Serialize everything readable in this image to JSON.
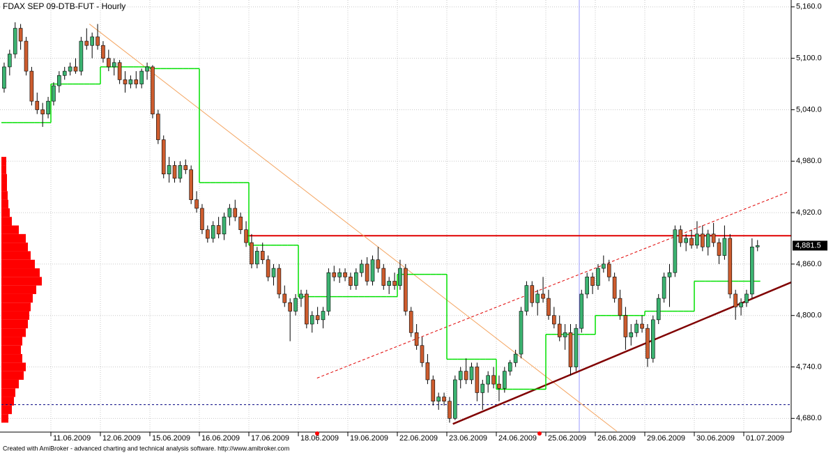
{
  "chart_data": {
    "type": "candlestick",
    "title": "FDAX SEP 09-DTB-FUT - Hourly",
    "footer": "Created with AmiBroker - advanced charting and technical analysis software. http://www.amibroker.com",
    "up_color": "#3cb371",
    "down_color": "#cd5c2e",
    "ylim": [
      4664,
      5168
    ],
    "yticks": [
      {
        "value": 4680,
        "label": "4,680.0"
      },
      {
        "value": 4740,
        "label": "4,740.0"
      },
      {
        "value": 4800,
        "label": "4,800.0"
      },
      {
        "value": 4860,
        "label": "4,860.0"
      },
      {
        "value": 4920,
        "label": "4,920.0"
      },
      {
        "value": 4980,
        "label": "4,980.0"
      },
      {
        "value": 5040,
        "label": "5,040.0"
      },
      {
        "value": 5100,
        "label": "5,100.0"
      },
      {
        "value": 5160,
        "label": "5,160.0"
      }
    ],
    "grid": true,
    "categories": [
      null,
      null,
      null,
      null,
      null,
      null,
      null,
      null,
      null,
      "11.06.2009",
      null,
      null,
      null,
      null,
      null,
      null,
      null,
      null,
      "12.06.2009",
      null,
      null,
      null,
      null,
      null,
      null,
      null,
      null,
      "15.06.2009",
      null,
      null,
      null,
      null,
      null,
      null,
      null,
      null,
      "16.06.2009",
      null,
      null,
      null,
      null,
      null,
      null,
      null,
      null,
      "17.06.2009",
      null,
      null,
      null,
      null,
      null,
      null,
      null,
      null,
      "18.06.2009",
      null,
      null,
      null,
      null,
      null,
      null,
      null,
      null,
      "19.06.2009",
      null,
      null,
      null,
      null,
      null,
      null,
      null,
      null,
      "22.06.2009",
      null,
      null,
      null,
      null,
      null,
      null,
      null,
      null,
      "23.06.2009",
      null,
      null,
      null,
      null,
      null,
      null,
      null,
      null,
      "24.06.2009",
      null,
      null,
      null,
      null,
      null,
      null,
      null,
      null,
      "25.06.2009",
      null,
      null,
      null,
      null,
      null,
      null,
      null,
      null,
      "26.06.2009",
      null,
      null,
      null,
      null,
      null,
      null,
      null,
      null,
      "29.06.2009",
      null,
      null,
      null,
      null,
      null,
      null,
      null,
      null,
      "30.06.2009",
      null,
      null,
      null,
      null,
      null,
      null,
      null,
      null,
      "01.07.2009",
      null,
      null
    ],
    "ohlc": [
      [
        5065,
        5095,
        5060,
        5090
      ],
      [
        5090,
        5110,
        5080,
        5105
      ],
      [
        5105,
        5142,
        5100,
        5135
      ],
      [
        5135,
        5140,
        5110,
        5120
      ],
      [
        5120,
        5125,
        5080,
        5085
      ],
      [
        5085,
        5090,
        5045,
        5050
      ],
      [
        5050,
        5060,
        5035,
        5040
      ],
      [
        5040,
        5048,
        5020,
        5035
      ],
      [
        5035,
        5055,
        5030,
        5050
      ],
      [
        5050,
        5072,
        5045,
        5068
      ],
      [
        5068,
        5085,
        5060,
        5080
      ],
      [
        5080,
        5090,
        5075,
        5085
      ],
      [
        5085,
        5095,
        5080,
        5090
      ],
      [
        5090,
        5100,
        5082,
        5085
      ],
      [
        5085,
        5125,
        5080,
        5120
      ],
      [
        5120,
        5135,
        5110,
        5115
      ],
      [
        5115,
        5130,
        5100,
        5125
      ],
      [
        5125,
        5140,
        5110,
        5115
      ],
      [
        5115,
        5120,
        5095,
        5100
      ],
      [
        5100,
        5110,
        5085,
        5090
      ],
      [
        5090,
        5100,
        5080,
        5095
      ],
      [
        5095,
        5098,
        5070,
        5075
      ],
      [
        5075,
        5085,
        5060,
        5070
      ],
      [
        5070,
        5080,
        5065,
        5075
      ],
      [
        5075,
        5085,
        5065,
        5070
      ],
      [
        5070,
        5088,
        5065,
        5085
      ],
      [
        5085,
        5095,
        5075,
        5090
      ],
      [
        5090,
        5092,
        5030,
        5035
      ],
      [
        5035,
        5040,
        5000,
        5005
      ],
      [
        5005,
        5010,
        4960,
        4965
      ],
      [
        4965,
        4985,
        4955,
        4975
      ],
      [
        4975,
        4980,
        4955,
        4960
      ],
      [
        4960,
        4980,
        4955,
        4975
      ],
      [
        4975,
        4982,
        4965,
        4970
      ],
      [
        4970,
        4975,
        4930,
        4935
      ],
      [
        4935,
        4945,
        4920,
        4925
      ],
      [
        4925,
        4930,
        4895,
        4900
      ],
      [
        4900,
        4905,
        4885,
        4890
      ],
      [
        4890,
        4910,
        4885,
        4905
      ],
      [
        4905,
        4915,
        4890,
        4895
      ],
      [
        4895,
        4920,
        4888,
        4915
      ],
      [
        4915,
        4930,
        4905,
        4925
      ],
      [
        4925,
        4935,
        4910,
        4915
      ],
      [
        4915,
        4920,
        4895,
        4900
      ],
      [
        4900,
        4910,
        4880,
        4885
      ],
      [
        4885,
        4895,
        4855,
        4860
      ],
      [
        4860,
        4880,
        4855,
        4875
      ],
      [
        4875,
        4885,
        4860,
        4865
      ],
      [
        4865,
        4870,
        4840,
        4845
      ],
      [
        4845,
        4860,
        4835,
        4855
      ],
      [
        4855,
        4860,
        4820,
        4825
      ],
      [
        4825,
        4835,
        4810,
        4815
      ],
      [
        4815,
        4820,
        4770,
        4805
      ],
      [
        4805,
        4825,
        4800,
        4820
      ],
      [
        4820,
        4830,
        4810,
        4825
      ],
      [
        4825,
        4830,
        4785,
        4790
      ],
      [
        4790,
        4805,
        4780,
        4800
      ],
      [
        4800,
        4810,
        4790,
        4795
      ],
      [
        4795,
        4810,
        4785,
        4805
      ],
      [
        4805,
        4855,
        4800,
        4850
      ],
      [
        4850,
        4858,
        4840,
        4845
      ],
      [
        4845,
        4855,
        4838,
        4850
      ],
      [
        4850,
        4855,
        4840,
        4845
      ],
      [
        4845,
        4850,
        4830,
        4835
      ],
      [
        4835,
        4855,
        4830,
        4850
      ],
      [
        4850,
        4865,
        4845,
        4860
      ],
      [
        4860,
        4868,
        4835,
        4840
      ],
      [
        4840,
        4870,
        4835,
        4865
      ],
      [
        4865,
        4880,
        4850,
        4855
      ],
      [
        4855,
        4860,
        4830,
        4835
      ],
      [
        4835,
        4845,
        4825,
        4840
      ],
      [
        4840,
        4850,
        4830,
        4835
      ],
      [
        4835,
        4865,
        4830,
        4855
      ],
      [
        4855,
        4860,
        4800,
        4805
      ],
      [
        4805,
        4810,
        4775,
        4780
      ],
      [
        4780,
        4790,
        4760,
        4765
      ],
      [
        4765,
        4775,
        4740,
        4745
      ],
      [
        4745,
        4755,
        4720,
        4725
      ],
      [
        4725,
        4730,
        4695,
        4700
      ],
      [
        4700,
        4710,
        4690,
        4705
      ],
      [
        4705,
        4710,
        4695,
        4700
      ],
      [
        4700,
        4705,
        4675,
        4680
      ],
      [
        4680,
        4730,
        4678,
        4725
      ],
      [
        4725,
        4740,
        4715,
        4735
      ],
      [
        4735,
        4750,
        4720,
        4725
      ],
      [
        4725,
        4745,
        4720,
        4740
      ],
      [
        4740,
        4745,
        4700,
        4710
      ],
      [
        4710,
        4725,
        4690,
        4720
      ],
      [
        4720,
        4735,
        4710,
        4730
      ],
      [
        4730,
        4740,
        4715,
        4720
      ],
      [
        4720,
        4730,
        4700,
        4715
      ],
      [
        4715,
        4740,
        4710,
        4735
      ],
      [
        4735,
        4748,
        4730,
        4745
      ],
      [
        4745,
        4760,
        4740,
        4755
      ],
      [
        4755,
        4810,
        4750,
        4805
      ],
      [
        4805,
        4840,
        4800,
        4835
      ],
      [
        4835,
        4840,
        4810,
        4815
      ],
      [
        4815,
        4830,
        4800,
        4825
      ],
      [
        4825,
        4845,
        4815,
        4820
      ],
      [
        4820,
        4830,
        4795,
        4800
      ],
      [
        4800,
        4810,
        4785,
        4790
      ],
      [
        4790,
        4800,
        4770,
        4775
      ],
      [
        4775,
        4790,
        4760,
        4780
      ],
      [
        4780,
        4790,
        4730,
        4740
      ],
      [
        4740,
        4790,
        4735,
        4785
      ],
      [
        4785,
        4830,
        4780,
        4825
      ],
      [
        4825,
        4850,
        4820,
        4845
      ],
      [
        4845,
        4850,
        4825,
        4835
      ],
      [
        4835,
        4860,
        4830,
        4855
      ],
      [
        4855,
        4870,
        4850,
        4860
      ],
      [
        4860,
        4865,
        4840,
        4845
      ],
      [
        4845,
        4850,
        4815,
        4820
      ],
      [
        4820,
        4830,
        4795,
        4800
      ],
      [
        4800,
        4810,
        4760,
        4775
      ],
      [
        4775,
        4790,
        4765,
        4780
      ],
      [
        4780,
        4795,
        4775,
        4790
      ],
      [
        4790,
        4800,
        4780,
        4785
      ],
      [
        4785,
        4790,
        4740,
        4750
      ],
      [
        4750,
        4800,
        4745,
        4795
      ],
      [
        4795,
        4825,
        4790,
        4820
      ],
      [
        4820,
        4850,
        4815,
        4845
      ],
      [
        4845,
        4860,
        4810,
        4850
      ],
      [
        4850,
        4905,
        4845,
        4900
      ],
      [
        4900,
        4905,
        4880,
        4885
      ],
      [
        4885,
        4895,
        4875,
        4890
      ],
      [
        4890,
        4900,
        4878,
        4882
      ],
      [
        4882,
        4910,
        4878,
        4895
      ],
      [
        4895,
        4905,
        4875,
        4880
      ],
      [
        4880,
        4900,
        4870,
        4895
      ],
      [
        4895,
        4908,
        4880,
        4885
      ],
      [
        4885,
        4890,
        4860,
        4870
      ],
      [
        4870,
        4905,
        4865,
        4890
      ],
      [
        4890,
        4895,
        4820,
        4825
      ],
      [
        4825,
        4830,
        4795,
        4810
      ],
      [
        4810,
        4820,
        4800,
        4815
      ],
      [
        4815,
        4830,
        4810,
        4825
      ],
      [
        4825,
        4890,
        4820,
        4880
      ],
      [
        4880,
        4888,
        4875,
        4881.5
      ]
    ],
    "last_label": {
      "value": 4881.5,
      "label": "4,881.5"
    },
    "step_line": {
      "color": "#00e000",
      "values": [
        5025,
        5025,
        5025,
        5025,
        5025,
        5025,
        5025,
        5025,
        5025,
        5070,
        5070,
        5070,
        5070,
        5070,
        5070,
        5070,
        5070,
        5070,
        5090,
        5090,
        5090,
        5090,
        5090,
        5090,
        5090,
        5090,
        5090,
        5088,
        5088,
        5088,
        5088,
        5088,
        5088,
        5088,
        5088,
        5088,
        4955,
        4955,
        4955,
        4955,
        4955,
        4955,
        4955,
        4955,
        4955,
        4882,
        4882,
        4882,
        4882,
        4882,
        4882,
        4882,
        4882,
        4882,
        4822,
        4822,
        4822,
        4822,
        4822,
        4822,
        4822,
        4822,
        4822,
        4822,
        4822,
        4822,
        4822,
        4822,
        4822,
        4822,
        4822,
        4822,
        4848,
        4848,
        4848,
        4848,
        4848,
        4848,
        4848,
        4848,
        4848,
        4749,
        4749,
        4749,
        4749,
        4749,
        4749,
        4749,
        4749,
        4749,
        4714,
        4714,
        4714,
        4714,
        4714,
        4714,
        4714,
        4714,
        4714,
        4778,
        4778,
        4778,
        4778,
        4778,
        4778,
        4778,
        4778,
        4778,
        4800,
        4800,
        4800,
        4800,
        4800,
        4800,
        4800,
        4800,
        4800,
        4805,
        4805,
        4805,
        4805,
        4805,
        4805,
        4805,
        4805,
        4805,
        4840,
        4840,
        4840,
        4840,
        4840,
        4840,
        4840,
        4840,
        4840,
        4840,
        4840,
        4840
      ]
    },
    "trendlines": [
      {
        "color": "#f4a460",
        "width": 1,
        "dashed": false,
        "x": [
          15.5,
          111.4
        ],
        "y": [
          5140,
          4665
        ]
      },
      {
        "color": "#e00000",
        "width": 1,
        "dashed": true,
        "x": [
          56.9,
          142.5
        ],
        "y": [
          4727,
          4944
        ]
      },
      {
        "color": "#800000",
        "width": 2.5,
        "dashed": false,
        "x": [
          81.6,
          143.1
        ],
        "y": [
          4673.5,
          4838.6
        ]
      }
    ],
    "hlines": [
      {
        "price": 4893,
        "color": "#e00000",
        "width": 2,
        "dashed": false,
        "from_index": 44.2
      },
      {
        "price": 4696,
        "color": "#000080",
        "width": 1,
        "dashed": true,
        "from_index": -0.5
      }
    ],
    "volume_profile": {
      "color": "#ff0000",
      "prices": [
        4680,
        4690,
        4700,
        4710,
        4720,
        4730,
        4740,
        4750,
        4760,
        4770,
        4780,
        4790,
        4800,
        4810,
        4820,
        4830,
        4840,
        4850,
        4860,
        4870,
        4880,
        4890,
        4900,
        4910,
        4920,
        4930,
        4940,
        4950,
        4960,
        4970,
        4980
      ],
      "values": [
        10,
        15,
        18,
        20,
        25,
        32,
        35,
        30,
        28,
        30,
        35,
        38,
        40,
        42,
        45,
        50,
        58,
        55,
        48,
        42,
        38,
        35,
        25,
        15,
        12,
        10,
        9,
        8,
        8,
        7,
        7
      ]
    }
  }
}
